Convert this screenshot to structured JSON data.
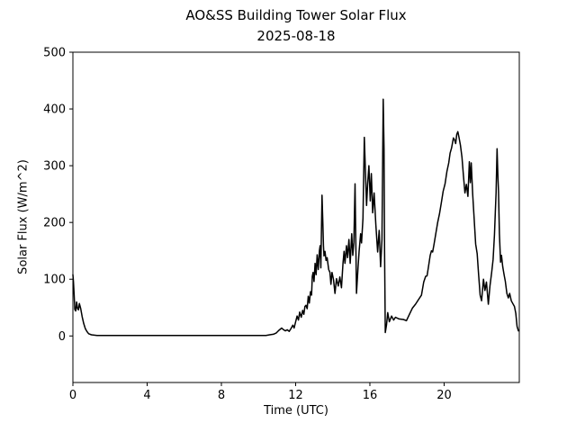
{
  "window": {
    "background": "#ffffff"
  },
  "chart_data": {
    "type": "line",
    "title": "AO&SS Building Tower Solar Flux",
    "subtitle": "2025-08-18",
    "xlabel": "Time (UTC)",
    "ylabel": "Solar Flux (W/m^2)",
    "xlim": [
      0,
      24.05
    ],
    "ylim": [
      -82,
      500
    ],
    "x_ticks": [
      0,
      4,
      8,
      12,
      16,
      20
    ],
    "y_ticks": [
      0,
      100,
      200,
      300,
      400,
      500
    ],
    "grid": false,
    "legend": "none",
    "line_color": "#000000",
    "frame_color": "#000000",
    "line_width": 1.5,
    "series": [
      {
        "name": "solar_flux",
        "points": [
          [
            0,
            108
          ],
          [
            0.03,
            96
          ],
          [
            0.07,
            72
          ],
          [
            0.1,
            47
          ],
          [
            0.15,
            44
          ],
          [
            0.2,
            60
          ],
          [
            0.25,
            48
          ],
          [
            0.3,
            46
          ],
          [
            0.35,
            57
          ],
          [
            0.42,
            48
          ],
          [
            0.5,
            34
          ],
          [
            0.58,
            22
          ],
          [
            0.67,
            13
          ],
          [
            0.75,
            8
          ],
          [
            0.85,
            4
          ],
          [
            1.0,
            2
          ],
          [
            1.3,
            1
          ],
          [
            2,
            1
          ],
          [
            3,
            1
          ],
          [
            4,
            1
          ],
          [
            5,
            1
          ],
          [
            6,
            1
          ],
          [
            7,
            1
          ],
          [
            8,
            1
          ],
          [
            9,
            1
          ],
          [
            10,
            1
          ],
          [
            10.4,
            1
          ],
          [
            10.6,
            2
          ],
          [
            10.8,
            3
          ],
          [
            10.95,
            5
          ],
          [
            11.1,
            10
          ],
          [
            11.25,
            14
          ],
          [
            11.35,
            11
          ],
          [
            11.45,
            9
          ],
          [
            11.55,
            11
          ],
          [
            11.65,
            8
          ],
          [
            11.75,
            13
          ],
          [
            11.85,
            19
          ],
          [
            11.92,
            14
          ],
          [
            12.0,
            25
          ],
          [
            12.08,
            35
          ],
          [
            12.15,
            28
          ],
          [
            12.22,
            42
          ],
          [
            12.3,
            33
          ],
          [
            12.38,
            45
          ],
          [
            12.44,
            38
          ],
          [
            12.5,
            52
          ],
          [
            12.56,
            54
          ],
          [
            12.62,
            48
          ],
          [
            12.68,
            70
          ],
          [
            12.74,
            58
          ],
          [
            12.8,
            78
          ],
          [
            12.86,
            72
          ],
          [
            12.9,
            105
          ],
          [
            12.94,
            112
          ],
          [
            12.99,
            96
          ],
          [
            13.05,
            128
          ],
          [
            13.1,
            108
          ],
          [
            13.16,
            143
          ],
          [
            13.22,
            117
          ],
          [
            13.28,
            150
          ],
          [
            13.32,
            159
          ],
          [
            13.36,
            120
          ],
          [
            13.42,
            248
          ],
          [
            13.47,
            195
          ],
          [
            13.5,
            159
          ],
          [
            13.53,
            141
          ],
          [
            13.58,
            149
          ],
          [
            13.64,
            133
          ],
          [
            13.7,
            138
          ],
          [
            13.78,
            117
          ],
          [
            13.85,
            112
          ],
          [
            13.9,
            91
          ],
          [
            13.96,
            112
          ],
          [
            14.04,
            99
          ],
          [
            14.12,
            75
          ],
          [
            14.2,
            101
          ],
          [
            14.3,
            88
          ],
          [
            14.38,
            104
          ],
          [
            14.47,
            85
          ],
          [
            14.55,
            128
          ],
          [
            14.61,
            149
          ],
          [
            14.66,
            128
          ],
          [
            14.74,
            159
          ],
          [
            14.8,
            138
          ],
          [
            14.87,
            170
          ],
          [
            14.94,
            128
          ],
          [
            15.02,
            180
          ],
          [
            15.08,
            142
          ],
          [
            15.14,
            165
          ],
          [
            15.2,
            268
          ],
          [
            15.28,
            75
          ],
          [
            15.36,
            120
          ],
          [
            15.42,
            149
          ],
          [
            15.5,
            180
          ],
          [
            15.55,
            164
          ],
          [
            15.63,
            207
          ],
          [
            15.7,
            350
          ],
          [
            15.76,
            292
          ],
          [
            15.82,
            230
          ],
          [
            15.88,
            268
          ],
          [
            15.95,
            300
          ],
          [
            16.02,
            238
          ],
          [
            16.08,
            286
          ],
          [
            16.15,
            217
          ],
          [
            16.23,
            252
          ],
          [
            16.32,
            196
          ],
          [
            16.42,
            148
          ],
          [
            16.5,
            186
          ],
          [
            16.58,
            122
          ],
          [
            16.65,
            170
          ],
          [
            16.72,
            417
          ],
          [
            16.76,
            330
          ],
          [
            16.79,
            150
          ],
          [
            16.83,
            6
          ],
          [
            16.9,
            20
          ],
          [
            16.96,
            41
          ],
          [
            17.05,
            25
          ],
          [
            17.17,
            35
          ],
          [
            17.28,
            28
          ],
          [
            17.38,
            33
          ],
          [
            17.57,
            30
          ],
          [
            17.81,
            29
          ],
          [
            17.97,
            27
          ],
          [
            18.13,
            38
          ],
          [
            18.29,
            49
          ],
          [
            18.46,
            56
          ],
          [
            18.62,
            64
          ],
          [
            18.78,
            72
          ],
          [
            18.9,
            95
          ],
          [
            19.0,
            105
          ],
          [
            19.08,
            106
          ],
          [
            19.15,
            120
          ],
          [
            19.25,
            142
          ],
          [
            19.32,
            150
          ],
          [
            19.38,
            148
          ],
          [
            19.45,
            160
          ],
          [
            19.55,
            180
          ],
          [
            19.65,
            200
          ],
          [
            19.75,
            215
          ],
          [
            19.85,
            235
          ],
          [
            19.95,
            255
          ],
          [
            20.05,
            268
          ],
          [
            20.15,
            290
          ],
          [
            20.25,
            305
          ],
          [
            20.32,
            322
          ],
          [
            20.4,
            331
          ],
          [
            20.5,
            349
          ],
          [
            20.57,
            345
          ],
          [
            20.62,
            339
          ],
          [
            20.68,
            355
          ],
          [
            20.74,
            360
          ],
          [
            20.8,
            350
          ],
          [
            20.88,
            336
          ],
          [
            20.96,
            315
          ],
          [
            21.04,
            283
          ],
          [
            21.12,
            252
          ],
          [
            21.2,
            267
          ],
          [
            21.28,
            246
          ],
          [
            21.36,
            307
          ],
          [
            21.41,
            270
          ],
          [
            21.46,
            305
          ],
          [
            21.54,
            250
          ],
          [
            21.62,
            205
          ],
          [
            21.7,
            162
          ],
          [
            21.78,
            145
          ],
          [
            21.86,
            108
          ],
          [
            21.94,
            72
          ],
          [
            22.02,
            62
          ],
          [
            22.12,
            100
          ],
          [
            22.2,
            80
          ],
          [
            22.28,
            95
          ],
          [
            22.38,
            56
          ],
          [
            22.47,
            88
          ],
          [
            22.56,
            112
          ],
          [
            22.64,
            135
          ],
          [
            22.71,
            178
          ],
          [
            22.76,
            220
          ],
          [
            22.8,
            252
          ],
          [
            22.85,
            330
          ],
          [
            22.9,
            278
          ],
          [
            22.93,
            255
          ],
          [
            22.98,
            180
          ],
          [
            23.04,
            130
          ],
          [
            23.09,
            142
          ],
          [
            23.16,
            122
          ],
          [
            23.23,
            108
          ],
          [
            23.3,
            96
          ],
          [
            23.38,
            75
          ],
          [
            23.46,
            67
          ],
          [
            23.53,
            75
          ],
          [
            23.62,
            62
          ],
          [
            23.7,
            57
          ],
          [
            23.79,
            52
          ],
          [
            23.86,
            40
          ],
          [
            23.93,
            17
          ],
          [
            24.0,
            9
          ]
        ]
      }
    ]
  }
}
